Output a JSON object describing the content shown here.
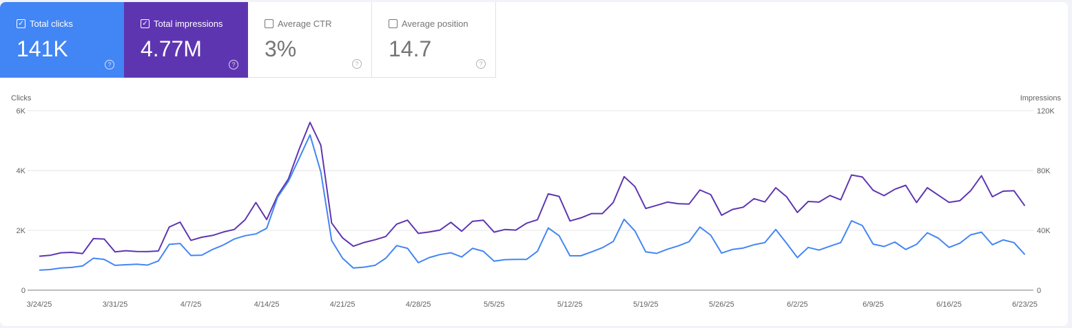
{
  "metrics": [
    {
      "label": "Total clicks",
      "value": "141K",
      "checked": true,
      "color": "#4285f4"
    },
    {
      "label": "Total impressions",
      "value": "4.77M",
      "checked": true,
      "color": "#5e35b1"
    },
    {
      "label": "Average CTR",
      "value": "3%",
      "checked": false
    },
    {
      "label": "Average position",
      "value": "14.7",
      "checked": false
    }
  ],
  "icons": {
    "checkbox": "check-icon",
    "help": "help-circle-icon"
  },
  "chart_data": {
    "type": "line",
    "ylabel": "Clicks",
    "y2label": "Impressions",
    "ylim": [
      0,
      6000
    ],
    "y2lim": [
      0,
      120000
    ],
    "yticks": [
      "0",
      "2K",
      "4K",
      "6K"
    ],
    "y2ticks": [
      "0",
      "40K",
      "80K",
      "120K"
    ],
    "xticks": [
      "3/24/25",
      "3/31/25",
      "4/7/25",
      "4/14/25",
      "4/21/25",
      "4/28/25",
      "5/5/25",
      "5/12/25",
      "5/19/25",
      "5/26/25",
      "6/2/25",
      "6/9/25",
      "6/16/25",
      "6/23/25"
    ],
    "grid": true,
    "x": [
      "3/24/25",
      "3/25/25",
      "3/26/25",
      "3/27/25",
      "3/28/25",
      "3/29/25",
      "3/30/25",
      "3/31/25",
      "4/1/25",
      "4/2/25",
      "4/3/25",
      "4/4/25",
      "4/5/25",
      "4/6/25",
      "4/7/25",
      "4/8/25",
      "4/9/25",
      "4/10/25",
      "4/11/25",
      "4/12/25",
      "4/13/25",
      "4/14/25",
      "4/15/25",
      "4/16/25",
      "4/17/25",
      "4/18/25",
      "4/19/25",
      "4/20/25",
      "4/21/25",
      "4/22/25",
      "4/23/25",
      "4/24/25",
      "4/25/25",
      "4/26/25",
      "4/27/25",
      "4/28/25",
      "4/29/25",
      "4/30/25",
      "5/1/25",
      "5/2/25",
      "5/3/25",
      "5/4/25",
      "5/5/25",
      "5/6/25",
      "5/7/25",
      "5/8/25",
      "5/9/25",
      "5/10/25",
      "5/11/25",
      "5/12/25",
      "5/13/25",
      "5/14/25",
      "5/15/25",
      "5/16/25",
      "5/17/25",
      "5/18/25",
      "5/19/25",
      "5/20/25",
      "5/21/25",
      "5/22/25",
      "5/23/25",
      "5/24/25",
      "5/25/25",
      "5/26/25",
      "5/27/25",
      "5/28/25",
      "5/29/25",
      "5/30/25",
      "5/31/25",
      "6/1/25",
      "6/2/25",
      "6/3/25",
      "6/4/25",
      "6/5/25",
      "6/6/25",
      "6/7/25",
      "6/8/25",
      "6/9/25",
      "6/10/25",
      "6/11/25",
      "6/12/25",
      "6/13/25",
      "6/14/25",
      "6/15/25",
      "6/16/25",
      "6/17/25",
      "6/18/25",
      "6/19/25",
      "6/20/25",
      "6/21/25",
      "6/22/25",
      "6/23/25"
    ],
    "series": [
      {
        "name": "Clicks",
        "axis": "left",
        "color": "#4285f4",
        "values": [
          670,
          690,
          740,
          760,
          810,
          1070,
          1030,
          830,
          850,
          870,
          840,
          980,
          1530,
          1560,
          1160,
          1170,
          1360,
          1510,
          1710,
          1820,
          1880,
          2070,
          3100,
          3640,
          4410,
          5190,
          3950,
          1660,
          1070,
          740,
          770,
          830,
          1070,
          1490,
          1400,
          920,
          1090,
          1190,
          1250,
          1110,
          1400,
          1300,
          970,
          1020,
          1030,
          1030,
          1300,
          2080,
          1820,
          1150,
          1150,
          1280,
          1420,
          1630,
          2370,
          1980,
          1280,
          1230,
          1370,
          1480,
          1620,
          2110,
          1840,
          1240,
          1360,
          1410,
          1520,
          1590,
          2030,
          1570,
          1090,
          1430,
          1340,
          1470,
          1590,
          2320,
          2160,
          1540,
          1460,
          1610,
          1360,
          1530,
          1920,
          1740,
          1430,
          1570,
          1850,
          1940,
          1520,
          1680,
          1590,
          1190
        ]
      },
      {
        "name": "Impressions",
        "axis": "right",
        "color": "#5e35b1",
        "values": [
          22700,
          23300,
          25000,
          25300,
          24500,
          34500,
          34200,
          25600,
          26400,
          25900,
          25800,
          26200,
          42200,
          45500,
          33300,
          35400,
          36600,
          38900,
          40600,
          47100,
          58600,
          47200,
          63200,
          74400,
          94300,
          112200,
          96900,
          44900,
          35000,
          29400,
          31900,
          33700,
          35900,
          44200,
          46800,
          38000,
          38900,
          40200,
          45400,
          39400,
          46000,
          46800,
          38800,
          40600,
          40200,
          44800,
          47100,
          64400,
          62700,
          46300,
          48300,
          51200,
          51200,
          58700,
          75900,
          69300,
          54600,
          56700,
          58900,
          57800,
          57600,
          67000,
          63900,
          50100,
          54000,
          55500,
          61200,
          59000,
          68500,
          62500,
          52000,
          59300,
          58900,
          63300,
          60400,
          77000,
          75700,
          66800,
          63200,
          67500,
          70100,
          58600,
          68500,
          63600,
          58700,
          59800,
          66500,
          76500,
          62500,
          66200,
          66500,
          56400
        ]
      }
    ]
  }
}
